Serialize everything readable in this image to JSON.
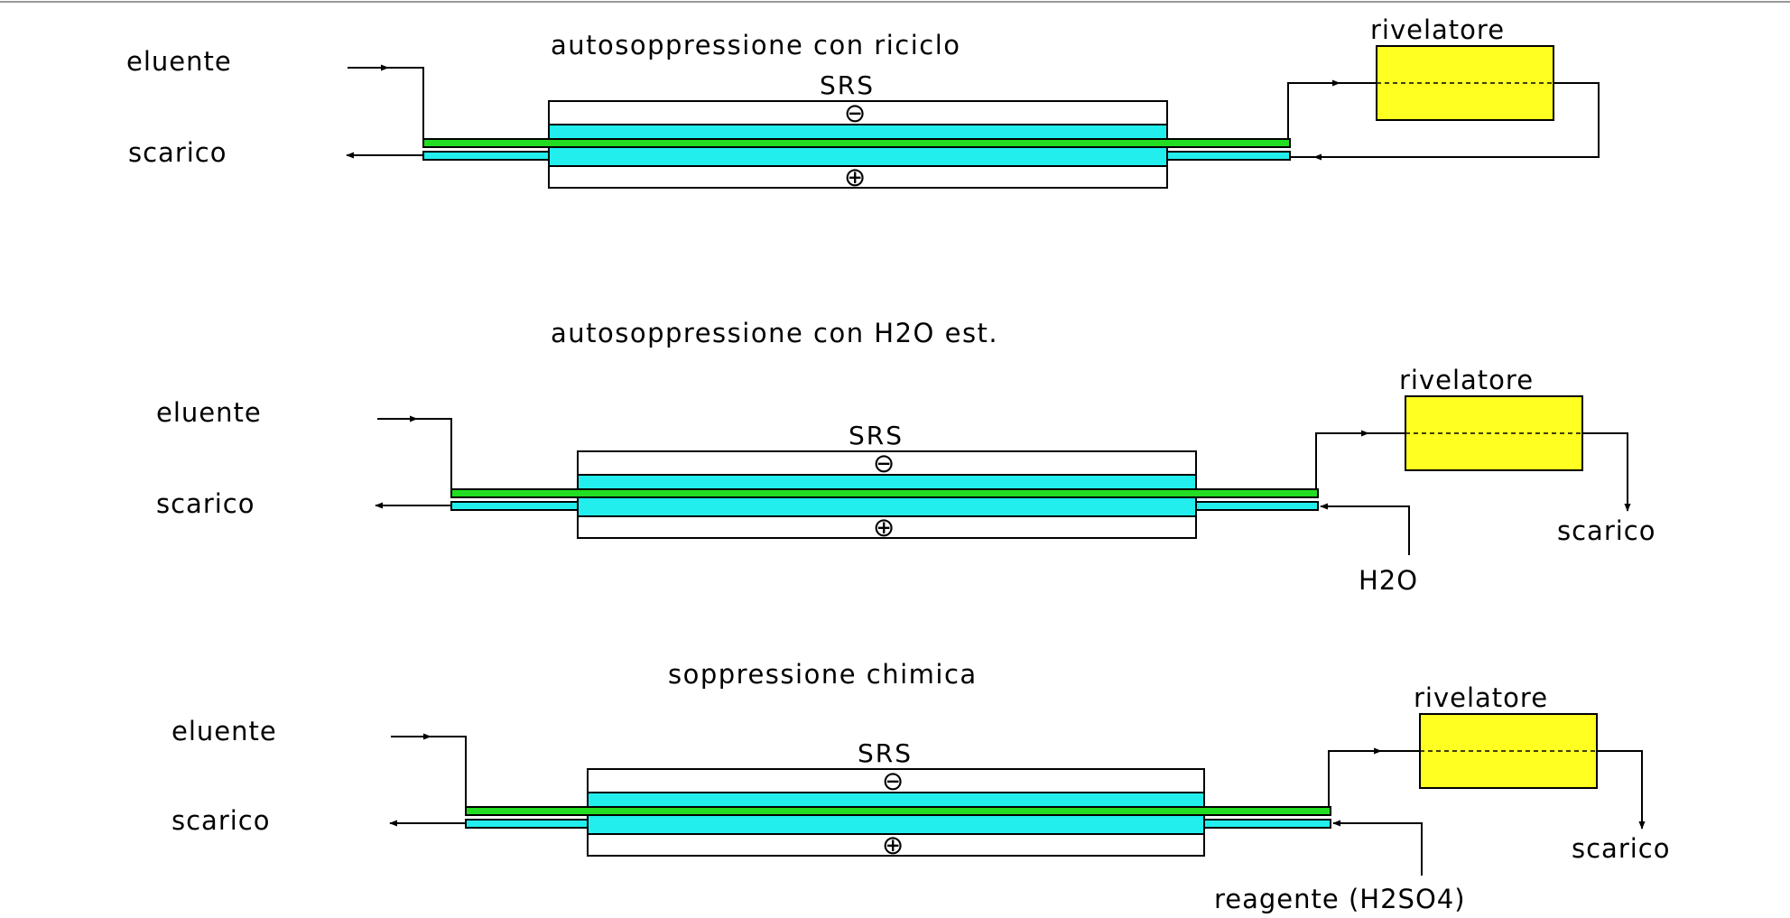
{
  "colors": {
    "eluent_channel": "#22dd22",
    "regenerant": "#22eeee",
    "detector": "#ffff22",
    "stroke": "#000000",
    "background": "#ffffff"
  },
  "diagrams": [
    {
      "title": "autosoppressione con  riciclo",
      "eluent_label": "eluente",
      "waste_label": "scarico",
      "suppressor_label": "SRS",
      "cathode_sign": "⊖",
      "anode_sign": "⊕",
      "detector_label": "rivelatore",
      "outlet_label": "",
      "feed_label": ""
    },
    {
      "title": "autosoppressione con H2O est.",
      "eluent_label": "eluente",
      "waste_label": "scarico",
      "suppressor_label": "SRS",
      "cathode_sign": "⊖",
      "anode_sign": "⊕",
      "detector_label": "rivelatore",
      "outlet_label": "scarico",
      "feed_label": "H2O"
    },
    {
      "title": "soppressione chimica",
      "eluent_label": "eluente",
      "waste_label": "scarico",
      "suppressor_label": "SRS",
      "cathode_sign": "⊖",
      "anode_sign": "⊕",
      "detector_label": "rivelatore",
      "outlet_label": "scarico",
      "feed_label": "reagente (H2SO4)"
    }
  ]
}
